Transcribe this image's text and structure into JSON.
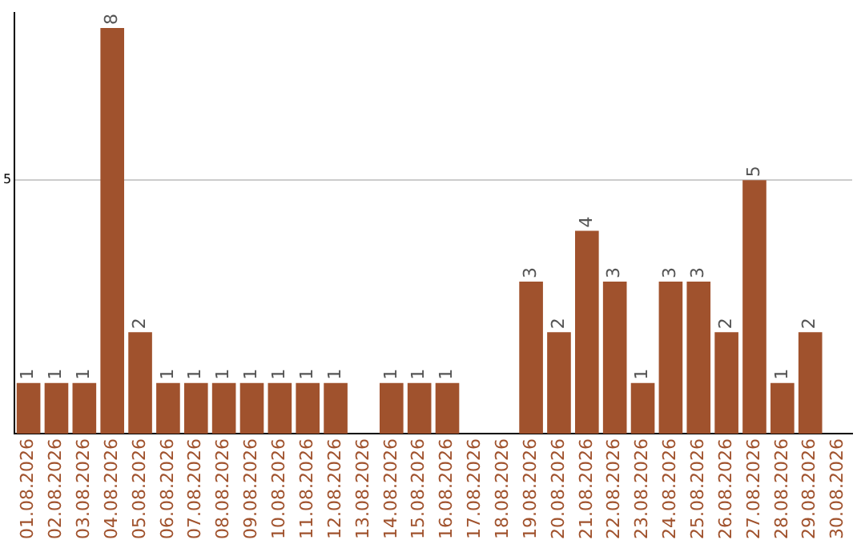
{
  "chart_data": {
    "type": "bar",
    "categories": [
      "01.08.2026",
      "02.08.2026",
      "03.08.2026",
      "04.08.2026",
      "05.08.2026",
      "06.08.2026",
      "07.08.2026",
      "08.08.2026",
      "09.08.2026",
      "10.08.2026",
      "11.08.2026",
      "12.08.2026",
      "13.08.2026",
      "14.08.2026",
      "15.08.2026",
      "16.08.2026",
      "17.08.2026",
      "18.08.2026",
      "19.08.2026",
      "20.08.2026",
      "21.08.2026",
      "22.08.2026",
      "23.08.2026",
      "24.08.2026",
      "25.08.2026",
      "26.08.2026",
      "27.08.2026",
      "28.08.2026",
      "29.08.2026",
      "30.08.2026"
    ],
    "values": [
      1,
      1,
      1,
      8,
      2,
      1,
      1,
      1,
      1,
      1,
      1,
      1,
      null,
      1,
      1,
      1,
      null,
      null,
      3,
      2,
      4,
      3,
      1,
      3,
      3,
      2,
      5,
      1,
      2,
      null
    ],
    "color": "#a0522d",
    "ylim": [
      0,
      8.3
    ],
    "yticks": [
      5
    ],
    "grid": "y",
    "data_labels": true,
    "legend": false
  }
}
